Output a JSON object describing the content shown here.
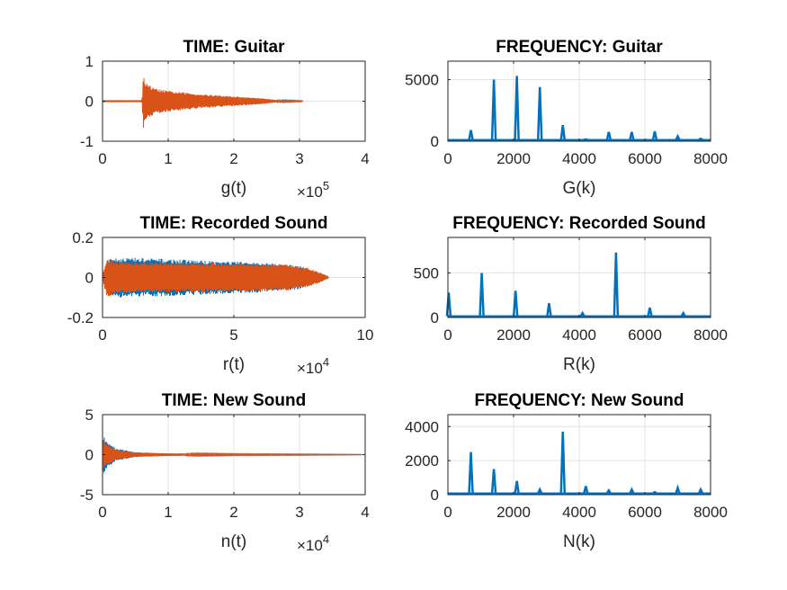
{
  "colors": {
    "blue": "#0072BD",
    "orange": "#D95319"
  },
  "chart_data": [
    {
      "type": "line",
      "title": "TIME: Guitar",
      "xlabel": "g(t)",
      "x_exponent": "5",
      "xlim": [
        0,
        4
      ],
      "ylim": [
        -1,
        1
      ],
      "xticks": [
        0,
        1,
        2,
        3,
        4
      ],
      "xtick_labels": [
        "0",
        "1",
        "2",
        "3",
        "4"
      ],
      "yticks": [
        -1,
        0,
        1
      ],
      "ytick_labels": [
        "-1",
        "0",
        "1"
      ],
      "grid": true,
      "series": [
        {
          "color": "#0072BD",
          "envelope": [
            [
              0,
              0.01
            ],
            [
              0.6,
              0.01
            ],
            [
              0.62,
              0.22
            ],
            [
              1.0,
              0.15
            ],
            [
              2.0,
              0.07
            ],
            [
              2.6,
              0.03
            ],
            [
              3.05,
              0.01
            ]
          ]
        },
        {
          "color": "#D95319",
          "envelope": [
            [
              0,
              0.01
            ],
            [
              0.6,
              0.01
            ],
            [
              0.62,
              0.7
            ],
            [
              0.66,
              0.45
            ],
            [
              0.8,
              0.32
            ],
            [
              1.0,
              0.26
            ],
            [
              1.5,
              0.18
            ],
            [
              2.0,
              0.12
            ],
            [
              2.4,
              0.08
            ],
            [
              2.6,
              0.04
            ],
            [
              2.7,
              0.015
            ],
            [
              3.05,
              0.01
            ]
          ]
        }
      ]
    },
    {
      "type": "line",
      "title": "FREQUENCY: Guitar",
      "xlabel": "G(k)",
      "xlim": [
        0,
        8000
      ],
      "ylim": [
        0,
        6500
      ],
      "xticks": [
        0,
        2000,
        4000,
        6000,
        8000
      ],
      "xtick_labels": [
        "0",
        "2000",
        "4000",
        "6000",
        "8000"
      ],
      "yticks": [
        0,
        5000
      ],
      "ytick_labels": [
        "0",
        "5000"
      ],
      "grid": true,
      "series": [
        {
          "color": "#0072BD",
          "x": [
            700,
            1400,
            2100,
            2800,
            3500,
            4200,
            4900,
            5600,
            6300,
            7000,
            7700
          ],
          "y": [
            900,
            5000,
            5300,
            4400,
            1300,
            150,
            750,
            750,
            800,
            400,
            200
          ]
        }
      ]
    },
    {
      "type": "line",
      "title": "TIME: Recorded Sound",
      "xlabel": "r(t)",
      "x_exponent": "4",
      "xlim": [
        0,
        10
      ],
      "ylim": [
        -0.2,
        0.2
      ],
      "xticks": [
        0,
        5,
        10
      ],
      "xtick_labels": [
        "0",
        "5",
        "10"
      ],
      "yticks": [
        -0.2,
        0,
        0.2
      ],
      "ytick_labels": [
        "-0.2",
        "0",
        "0.2"
      ],
      "grid": true,
      "series": [
        {
          "color": "#0072BD",
          "envelope": [
            [
              0,
              0.01
            ],
            [
              0.2,
              0.09
            ],
            [
              0.5,
              0.1
            ],
            [
              1.0,
              0.1
            ],
            [
              2.0,
              0.095
            ],
            [
              4.0,
              0.085
            ],
            [
              6.0,
              0.075
            ],
            [
              7.5,
              0.06
            ],
            [
              8.2,
              0.025
            ],
            [
              8.6,
              0.005
            ]
          ]
        },
        {
          "color": "#D95319",
          "envelope": [
            [
              0,
              0.01
            ],
            [
              0.15,
              0.095
            ],
            [
              0.5,
              0.085
            ],
            [
              1.0,
              0.08
            ],
            [
              2.0,
              0.075
            ],
            [
              4.0,
              0.075
            ],
            [
              6.0,
              0.07
            ],
            [
              7.0,
              0.065
            ],
            [
              7.8,
              0.05
            ],
            [
              8.3,
              0.025
            ],
            [
              8.6,
              0.005
            ]
          ]
        }
      ]
    },
    {
      "type": "line",
      "title": "FREQUENCY: Recorded Sound",
      "xlabel": "R(k)",
      "xlim": [
        0,
        8000
      ],
      "ylim": [
        0,
        900
      ],
      "xticks": [
        0,
        2000,
        4000,
        6000,
        8000
      ],
      "xtick_labels": [
        "0",
        "2000",
        "4000",
        "6000",
        "8000"
      ],
      "yticks": [
        0,
        500
      ],
      "ytick_labels": [
        "0",
        "500"
      ],
      "grid": true,
      "series": [
        {
          "color": "#0072BD",
          "x": [
            25,
            1030,
            2060,
            3080,
            4100,
            5120,
            6150,
            7170
          ],
          "y": [
            280,
            500,
            300,
            160,
            50,
            730,
            110,
            50
          ]
        }
      ]
    },
    {
      "type": "line",
      "title": "TIME: New Sound",
      "xlabel": "n(t)",
      "x_exponent": "4",
      "xlim": [
        0,
        4
      ],
      "ylim": [
        -5,
        5
      ],
      "xticks": [
        0,
        1,
        2,
        3,
        4
      ],
      "xtick_labels": [
        "0",
        "1",
        "2",
        "3",
        "4"
      ],
      "yticks": [
        -5,
        0,
        5
      ],
      "ytick_labels": [
        "-5",
        "0",
        "5"
      ],
      "grid": true,
      "series": [
        {
          "color": "#0072BD",
          "envelope": [
            [
              0,
              2.6
            ],
            [
              0.05,
              1.8
            ],
            [
              0.2,
              0.8
            ],
            [
              0.5,
              0.3
            ],
            [
              1.0,
              0.15
            ],
            [
              2.0,
              0.08
            ],
            [
              3.0,
              0.06
            ],
            [
              3.95,
              0.03
            ]
          ]
        },
        {
          "color": "#D95319",
          "envelope": [
            [
              0,
              2.2
            ],
            [
              0.05,
              1.5
            ],
            [
              0.2,
              0.7
            ],
            [
              0.5,
              0.28
            ],
            [
              1.0,
              0.15
            ],
            [
              2.0,
              0.08
            ],
            [
              3.0,
              0.06
            ],
            [
              3.95,
              0.03
            ]
          ]
        }
      ]
    },
    {
      "type": "line",
      "title": "FREQUENCY: New Sound",
      "xlabel": "N(k)",
      "xlim": [
        0,
        8000
      ],
      "ylim": [
        0,
        4700
      ],
      "xticks": [
        0,
        2000,
        4000,
        6000,
        8000
      ],
      "xtick_labels": [
        "0",
        "2000",
        "4000",
        "6000",
        "8000"
      ],
      "yticks": [
        0,
        2000,
        4000
      ],
      "ytick_labels": [
        "0",
        "2000",
        "4000"
      ],
      "grid": true,
      "series": [
        {
          "color": "#0072BD",
          "x": [
            700,
            1400,
            2100,
            2800,
            3500,
            4200,
            4900,
            5600,
            6300,
            7000,
            7700
          ],
          "y": [
            2500,
            1500,
            800,
            300,
            3700,
            500,
            250,
            300,
            150,
            400,
            300
          ]
        }
      ]
    }
  ]
}
